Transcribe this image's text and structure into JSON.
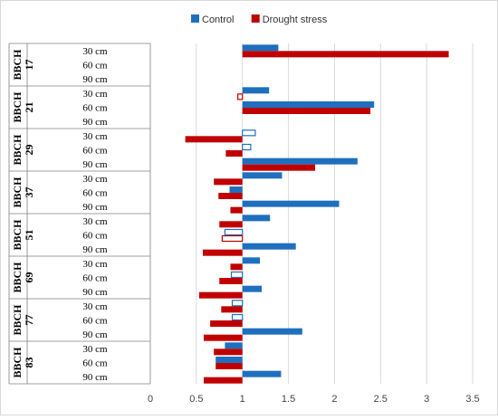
{
  "chart_data": {
    "type": "bar",
    "orientation": "horizontal",
    "groups": [
      "BBCH 17",
      "BBCH 21",
      "BBCH 29",
      "BBCH 37",
      "BBCH 51",
      "BBCH 69",
      "BBCH 77",
      "BBCH 83"
    ],
    "categories": [
      "30 cm",
      "60 cm",
      "90 cm"
    ],
    "series": [
      {
        "name": "Control",
        "color": "#1f6fbf",
        "values": [
          [
            1.39,
            null,
            null
          ],
          [
            1.29,
            2.43,
            null
          ],
          [
            1.14,
            1.09,
            2.25
          ],
          [
            1.43,
            0.86,
            2.05
          ],
          [
            1.3,
            0.81,
            1.58
          ],
          [
            1.19,
            0.88,
            1.21
          ],
          [
            0.89,
            0.89,
            1.65
          ],
          [
            0.81,
            0.71,
            1.42
          ]
        ],
        "outlined": [
          [
            false,
            false,
            false
          ],
          [
            false,
            false,
            false
          ],
          [
            true,
            true,
            false
          ],
          [
            false,
            false,
            false
          ],
          [
            false,
            true,
            false
          ],
          [
            false,
            true,
            false
          ],
          [
            true,
            true,
            false
          ],
          [
            false,
            false,
            false
          ]
        ]
      },
      {
        "name": "Drought stress",
        "color": "#c00000",
        "values": [
          [
            3.24,
            null,
            null
          ],
          [
            0.95,
            2.39,
            null
          ],
          [
            0.38,
            0.82,
            1.79
          ],
          [
            0.69,
            0.74,
            0.87
          ],
          [
            0.75,
            0.78,
            0.57
          ],
          [
            0.87,
            0.75,
            0.53
          ],
          [
            0.77,
            0.65,
            0.58
          ],
          [
            0.69,
            0.71,
            0.58
          ]
        ],
        "outlined": [
          [
            false,
            false,
            false
          ],
          [
            true,
            false,
            false
          ],
          [
            false,
            false,
            false
          ],
          [
            false,
            false,
            false
          ],
          [
            false,
            true,
            false
          ],
          [
            false,
            false,
            false
          ],
          [
            false,
            false,
            false
          ],
          [
            false,
            false,
            false
          ]
        ]
      }
    ],
    "baseline": 1,
    "xlim": [
      0,
      3.5
    ],
    "xticks": [
      "0",
      "0.5",
      "1",
      "1.5",
      "2",
      "2.5",
      "3",
      "3.5"
    ],
    "legend_position": "top-center",
    "grid": true,
    "title": "",
    "xlabel": "",
    "ylabel": ""
  }
}
